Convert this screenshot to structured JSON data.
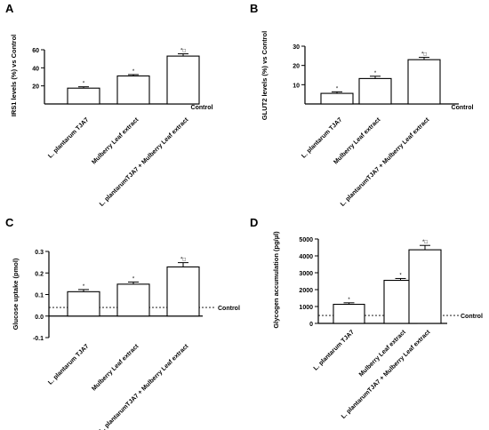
{
  "chart_data": [
    {
      "type": "bar",
      "panel": "A",
      "ylabel": "IRS1 levels (%) vs Control",
      "ylim": [
        0,
        60
      ],
      "yticks": [
        20,
        40,
        60
      ],
      "reference_label": "Control",
      "reference_value": 0,
      "categories": [
        "L. plantarum TJA7",
        "Mulberry Leaf extract",
        "L. plantarumTJA7 + Mulberry Leaf extract"
      ],
      "values": [
        17.5,
        31,
        53
      ],
      "errors": [
        1.5,
        1.5,
        2.5
      ],
      "annotations": [
        "*",
        "*",
        "*□"
      ]
    },
    {
      "type": "bar",
      "panel": "B",
      "ylabel": "GLUT2 levels (%) vs Control",
      "ylim": [
        0,
        30
      ],
      "yticks": [
        10,
        20,
        30
      ],
      "reference_label": "Control",
      "reference_value": 0,
      "categories": [
        "L. plantarum TJA7",
        "Mulberry Leaf extract",
        "L. plantarumTJA7 + Mulberry Leaf extract"
      ],
      "values": [
        5.5,
        13.2,
        23
      ],
      "errors": [
        0.8,
        1.2,
        1.2
      ],
      "annotations": [
        "*",
        "*",
        "*□"
      ]
    },
    {
      "type": "bar",
      "panel": "C",
      "ylabel": "Glucose uptake (pmol)",
      "ylim": [
        -0.1,
        0.3
      ],
      "yticks": [
        -0.1,
        0.0,
        0.1,
        0.2,
        0.3
      ],
      "yticklabels": [
        "-0.1",
        "0.0",
        "0.1",
        "0.2",
        "0.3"
      ],
      "reference_label": "Control",
      "reference_value": 0.04,
      "categories": [
        "L. plantarum TJA7",
        "Mulberry Leaf extract",
        "L. plantarumTJA7 + Mulberry Leaf extract"
      ],
      "values": [
        0.113,
        0.148,
        0.228
      ],
      "errors": [
        0.01,
        0.01,
        0.02
      ],
      "annotations": [
        "*",
        "*",
        "*□"
      ]
    },
    {
      "type": "bar",
      "panel": "D",
      "ylabel": "Glycogen accumulation (pg/µl)",
      "ylim": [
        0,
        5000
      ],
      "yticks": [
        0,
        1000,
        2000,
        3000,
        4000,
        5000
      ],
      "reference_label": "Control",
      "reference_value": 470,
      "categories": [
        "L. plantarum TJA7",
        "Mulberry Leaf extract",
        "L. plantarumTJA7 + Mulberry Leaf extract"
      ],
      "values": [
        1130,
        2550,
        4360
      ],
      "errors": [
        90,
        110,
        260
      ],
      "annotations": [
        "*",
        "*",
        "*□"
      ]
    }
  ]
}
